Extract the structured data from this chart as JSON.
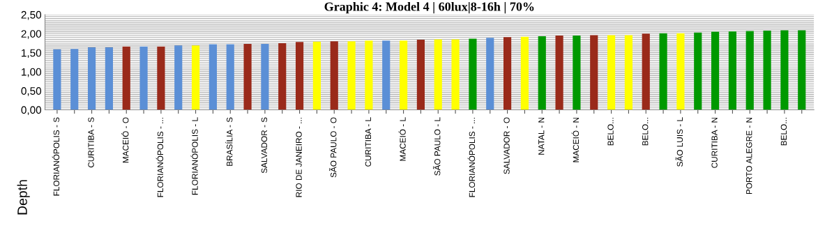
{
  "chart_data": {
    "type": "bar",
    "title": "Graphic 4: Model 4 | 60lux|8-16h | 70%",
    "ylabel": "Depth",
    "categories": [
      "FLORIANÓPOLIS - S",
      null,
      "CURITIBA - S",
      null,
      "MACEIÓ - O",
      null,
      "FLORIANÓPOLIS - ...",
      null,
      "FLORIANÓPOLIS - L",
      null,
      "BRASÍLIA - S",
      null,
      "SALVADOR - S",
      null,
      "RIO DE JANEIRO - ...",
      null,
      "SÃO PAULO - O",
      null,
      "CURITIBA - L",
      null,
      "MACEIÓ - L",
      null,
      "SÃO PAULO - L",
      null,
      "FLORIANÓPOLIS - ...",
      null,
      "SALVADOR - O",
      null,
      "NATAL - N",
      null,
      "MACEIÓ - N",
      null,
      "BELO...",
      null,
      "BELO...",
      null,
      "SÃO LUIS - L",
      null,
      "CURITIBA - N",
      null,
      "PORTO ALEGRE - N",
      null,
      "BELO...",
      null
    ],
    "values": [
      1.59,
      1.6,
      1.64,
      1.64,
      1.66,
      1.66,
      1.66,
      1.69,
      1.69,
      1.72,
      1.72,
      1.73,
      1.73,
      1.75,
      1.78,
      1.79,
      1.8,
      1.8,
      1.82,
      1.82,
      1.82,
      1.84,
      1.85,
      1.85,
      1.87,
      1.89,
      1.91,
      1.92,
      1.93,
      1.95,
      1.95,
      1.96,
      1.96,
      1.96,
      2.0,
      2.01,
      2.01,
      2.03,
      2.05,
      2.06,
      2.07,
      2.08,
      2.09,
      2.09
    ],
    "colors": [
      "#5b8fd6",
      "#5b8fd6",
      "#5b8fd6",
      "#5b8fd6",
      "#9a2a1a",
      "#5b8fd6",
      "#9a2a1a",
      "#5b8fd6",
      "#ffff00",
      "#5b8fd6",
      "#5b8fd6",
      "#9a2a1a",
      "#5b8fd6",
      "#9a2a1a",
      "#9a2a1a",
      "#ffff00",
      "#9a2a1a",
      "#ffff00",
      "#ffff00",
      "#5b8fd6",
      "#ffff00",
      "#9a2a1a",
      "#ffff00",
      "#ffff00",
      "#009900",
      "#5b8fd6",
      "#9a2a1a",
      "#ffff00",
      "#009900",
      "#9a2a1a",
      "#009900",
      "#9a2a1a",
      "#ffff00",
      "#ffff00",
      "#9a2a1a",
      "#009900",
      "#ffff00",
      "#009900",
      "#009900",
      "#009900",
      "#009900",
      "#009900",
      "#009900",
      "#009900"
    ],
    "ylim": [
      0,
      2.5
    ],
    "yticks": [
      {
        "value": 0,
        "label": "0,00"
      },
      {
        "value": 0.05,
        "label": null
      },
      {
        "value": 0.1,
        "label": null
      },
      {
        "value": 0.15,
        "label": null
      },
      {
        "value": 0.2,
        "label": null
      },
      {
        "value": 0.25,
        "label": null
      },
      {
        "value": 0.3,
        "label": null
      },
      {
        "value": 0.35,
        "label": null
      },
      {
        "value": 0.4,
        "label": null
      },
      {
        "value": 0.45,
        "label": null
      },
      {
        "value": 0.5,
        "label": "0,50"
      },
      {
        "value": 0.55,
        "label": null
      },
      {
        "value": 0.6,
        "label": null
      },
      {
        "value": 0.65,
        "label": null
      },
      {
        "value": 0.7,
        "label": null
      },
      {
        "value": 0.75,
        "label": null
      },
      {
        "value": 0.8,
        "label": null
      },
      {
        "value": 0.85,
        "label": null
      },
      {
        "value": 0.9,
        "label": null
      },
      {
        "value": 0.95,
        "label": null
      },
      {
        "value": 1.0,
        "label": "1,00"
      },
      {
        "value": 1.05,
        "label": null
      },
      {
        "value": 1.1,
        "label": null
      },
      {
        "value": 1.15,
        "label": null
      },
      {
        "value": 1.2,
        "label": null
      },
      {
        "value": 1.25,
        "label": null
      },
      {
        "value": 1.3,
        "label": null
      },
      {
        "value": 1.35,
        "label": null
      },
      {
        "value": 1.4,
        "label": null
      },
      {
        "value": 1.45,
        "label": null
      },
      {
        "value": 1.5,
        "label": "1,50"
      },
      {
        "value": 1.55,
        "label": null
      },
      {
        "value": 1.6,
        "label": null
      },
      {
        "value": 1.65,
        "label": null
      },
      {
        "value": 1.7,
        "label": null
      },
      {
        "value": 1.75,
        "label": null
      },
      {
        "value": 1.8,
        "label": null
      },
      {
        "value": 1.85,
        "label": null
      },
      {
        "value": 1.9,
        "label": null
      },
      {
        "value": 1.95,
        "label": null
      },
      {
        "value": 2.0,
        "label": "2,00"
      },
      {
        "value": 2.05,
        "label": null
      },
      {
        "value": 2.1,
        "label": null
      },
      {
        "value": 2.15,
        "label": null
      },
      {
        "value": 2.2,
        "label": null
      },
      {
        "value": 2.25,
        "label": null
      },
      {
        "value": 2.3,
        "label": null
      },
      {
        "value": 2.35,
        "label": null
      },
      {
        "value": 2.4,
        "label": null
      },
      {
        "value": 2.45,
        "label": null
      },
      {
        "value": 2.5,
        "label": "2,50"
      }
    ],
    "grid": "y"
  }
}
